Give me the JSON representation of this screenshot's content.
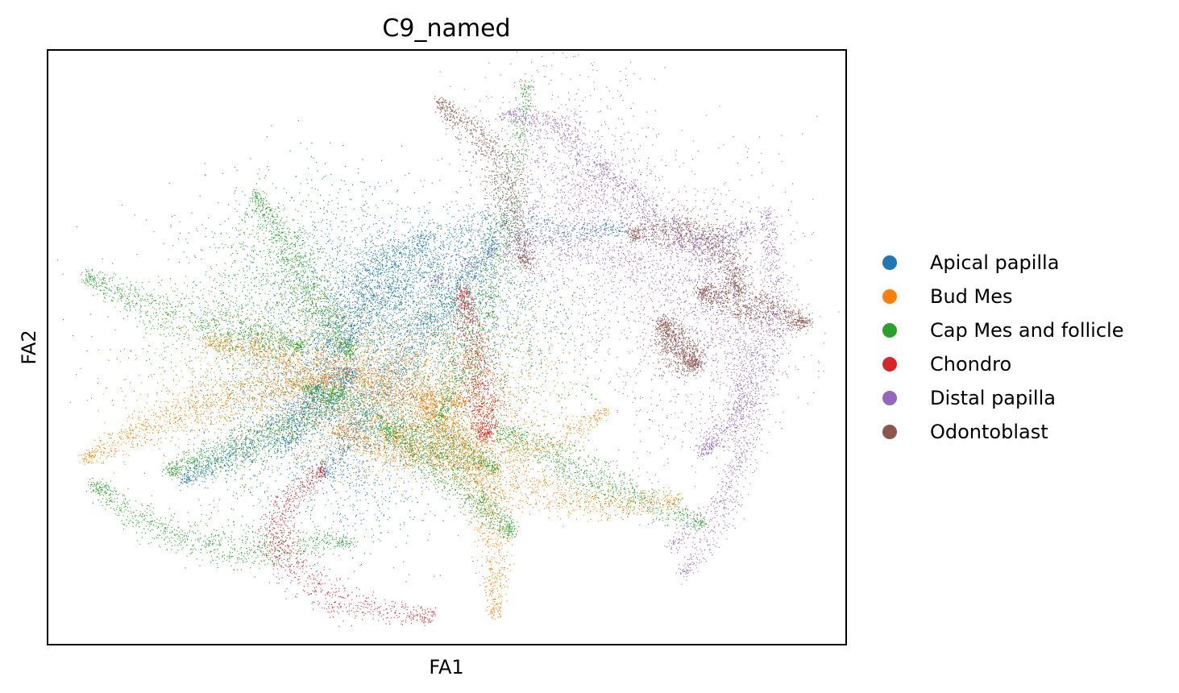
{
  "chart_data": {
    "type": "scatter",
    "title": "C9_named",
    "xlabel": "FA1",
    "ylabel": "FA2",
    "xlim": [
      0,
      1000
    ],
    "ylim": [
      0,
      740
    ],
    "grid": false,
    "ticks": "none",
    "legend_position": "right-outside",
    "series": [
      {
        "name": "Apical papilla",
        "color": "#1f77b4",
        "curves": [
          [
            [
              295,
              245
            ],
            [
              340,
              320
            ],
            [
              360,
              380
            ],
            [
              395,
              440
            ],
            [
              420,
              480
            ],
            [
              480,
              510
            ]
          ],
          [
            [
              345,
              210
            ],
            [
              390,
              270
            ],
            [
              430,
              330
            ],
            [
              470,
              390
            ],
            [
              515,
              440
            ],
            [
              560,
              500
            ]
          ],
          [
            [
              170,
              205
            ],
            [
              260,
              250
            ],
            [
              340,
              300
            ],
            [
              380,
              340
            ]
          ],
          [
            [
              370,
              370
            ],
            [
              420,
              430
            ],
            [
              470,
              475
            ],
            [
              520,
              510
            ],
            [
              580,
              520
            ],
            [
              650,
              515
            ],
            [
              720,
              520
            ]
          ]
        ],
        "regions": [
          {
            "center": [
              380,
              360
            ],
            "spread": [
              70,
              110
            ],
            "weight": 3
          },
          {
            "center": [
              480,
              430
            ],
            "spread": [
              70,
              45
            ],
            "weight": 2
          },
          {
            "center": [
              320,
              280
            ],
            "spread": [
              60,
              60
            ],
            "weight": 1
          }
        ]
      },
      {
        "name": "Bud Mes",
        "color": "#ff7f0e",
        "curves": [
          [
            [
              45,
              230
            ],
            [
              120,
              270
            ],
            [
              200,
              300
            ],
            [
              280,
              320
            ],
            [
              350,
              330
            ]
          ],
          [
            [
              360,
              270
            ],
            [
              440,
              240
            ],
            [
              520,
              250
            ],
            [
              600,
              240
            ],
            [
              700,
              290
            ]
          ],
          [
            [
              430,
              260
            ],
            [
              520,
              220
            ],
            [
              600,
              195
            ],
            [
              690,
              175
            ],
            [
              790,
              180
            ]
          ],
          [
            [
              470,
              300
            ],
            [
              520,
              240
            ],
            [
              555,
              150
            ],
            [
              560,
              35
            ]
          ],
          [
            [
              200,
              380
            ],
            [
              280,
              360
            ],
            [
              360,
              340
            ],
            [
              430,
              320
            ],
            [
              520,
              300
            ]
          ]
        ],
        "regions": [
          {
            "center": [
              380,
              330
            ],
            "spread": [
              120,
              50
            ],
            "weight": 3
          },
          {
            "center": [
              470,
              290
            ],
            "spread": [
              70,
              40
            ],
            "weight": 2
          }
        ]
      },
      {
        "name": "Cap Mes and follicle",
        "color": "#2ca02c",
        "curves": [
          [
            [
              45,
              460
            ],
            [
              130,
              420
            ],
            [
              230,
              390
            ],
            [
              320,
              370
            ]
          ],
          [
            [
              260,
              560
            ],
            [
              300,
              490
            ],
            [
              340,
              420
            ],
            [
              380,
              360
            ]
          ],
          [
            [
              150,
              215
            ],
            [
              220,
              240
            ],
            [
              300,
              270
            ],
            [
              370,
              320
            ]
          ],
          [
            [
              420,
              270
            ],
            [
              480,
              230
            ],
            [
              540,
              180
            ],
            [
              580,
              140
            ]
          ],
          [
            [
              490,
              280
            ],
            [
              540,
              420
            ],
            [
              575,
              540
            ],
            [
              600,
              700
            ]
          ],
          [
            [
              55,
              200
            ],
            [
              150,
              140
            ],
            [
              260,
              120
            ],
            [
              380,
              130
            ]
          ],
          [
            [
              320,
              320
            ],
            [
              420,
              280
            ],
            [
              500,
              250
            ],
            [
              560,
              220
            ]
          ],
          [
            [
              560,
              270
            ],
            [
              640,
              230
            ],
            [
              720,
              190
            ],
            [
              820,
              150
            ]
          ]
        ],
        "regions": [
          {
            "center": [
              380,
              350
            ],
            "spread": [
              140,
              90
            ],
            "weight": 3
          },
          {
            "center": [
              280,
              450
            ],
            "spread": [
              50,
              60
            ],
            "weight": 1
          },
          {
            "center": [
              520,
              370
            ],
            "spread": [
              60,
              60
            ],
            "weight": 1
          }
        ]
      },
      {
        "name": "Chondro",
        "color": "#d62728",
        "curves": [
          [
            [
              345,
              220
            ],
            [
              290,
              160
            ],
            [
              300,
              100
            ],
            [
              380,
              50
            ],
            [
              480,
              35
            ]
          ],
          [
            [
              520,
              440
            ],
            [
              540,
              330
            ],
            [
              550,
              260
            ]
          ]
        ],
        "regions": []
      },
      {
        "name": "Distal papilla",
        "color": "#9467bd",
        "curves": [
          [
            [
              480,
              450
            ],
            [
              560,
              490
            ],
            [
              650,
              500
            ],
            [
              730,
              480
            ],
            [
              820,
              420
            ],
            [
              870,
              330
            ],
            [
              860,
              210
            ],
            [
              780,
              120
            ]
          ],
          [
            [
              570,
              660
            ],
            [
              650,
              640
            ],
            [
              700,
              560
            ],
            [
              800,
              500
            ],
            [
              880,
              520
            ]
          ],
          [
            [
              690,
              600
            ],
            [
              760,
              540
            ],
            [
              850,
              460
            ],
            [
              880,
              330
            ],
            [
              850,
              170
            ],
            [
              795,
              85
            ]
          ],
          [
            [
              900,
              540
            ],
            [
              910,
              400
            ],
            [
              870,
              300
            ],
            [
              820,
              240
            ]
          ]
        ],
        "regions": [
          {
            "center": [
              640,
              550
            ],
            "spread": [
              60,
              80
            ],
            "weight": 2
          },
          {
            "center": [
              800,
              420
            ],
            "spread": [
              70,
              90
            ],
            "weight": 2
          }
        ]
      },
      {
        "name": "Odontoblast",
        "color": "#8c564b",
        "curves": [
          [
            [
              490,
              675
            ],
            [
              550,
              620
            ],
            [
              580,
              550
            ],
            [
              600,
              470
            ]
          ],
          [
            [
              730,
              510
            ],
            [
              800,
              515
            ],
            [
              850,
              490
            ],
            [
              865,
              440
            ]
          ],
          [
            [
              820,
              440
            ],
            [
              880,
              420
            ],
            [
              950,
              400
            ]
          ],
          [
            [
              770,
              400
            ],
            [
              790,
              370
            ],
            [
              810,
              350
            ]
          ]
        ],
        "regions": []
      }
    ]
  }
}
